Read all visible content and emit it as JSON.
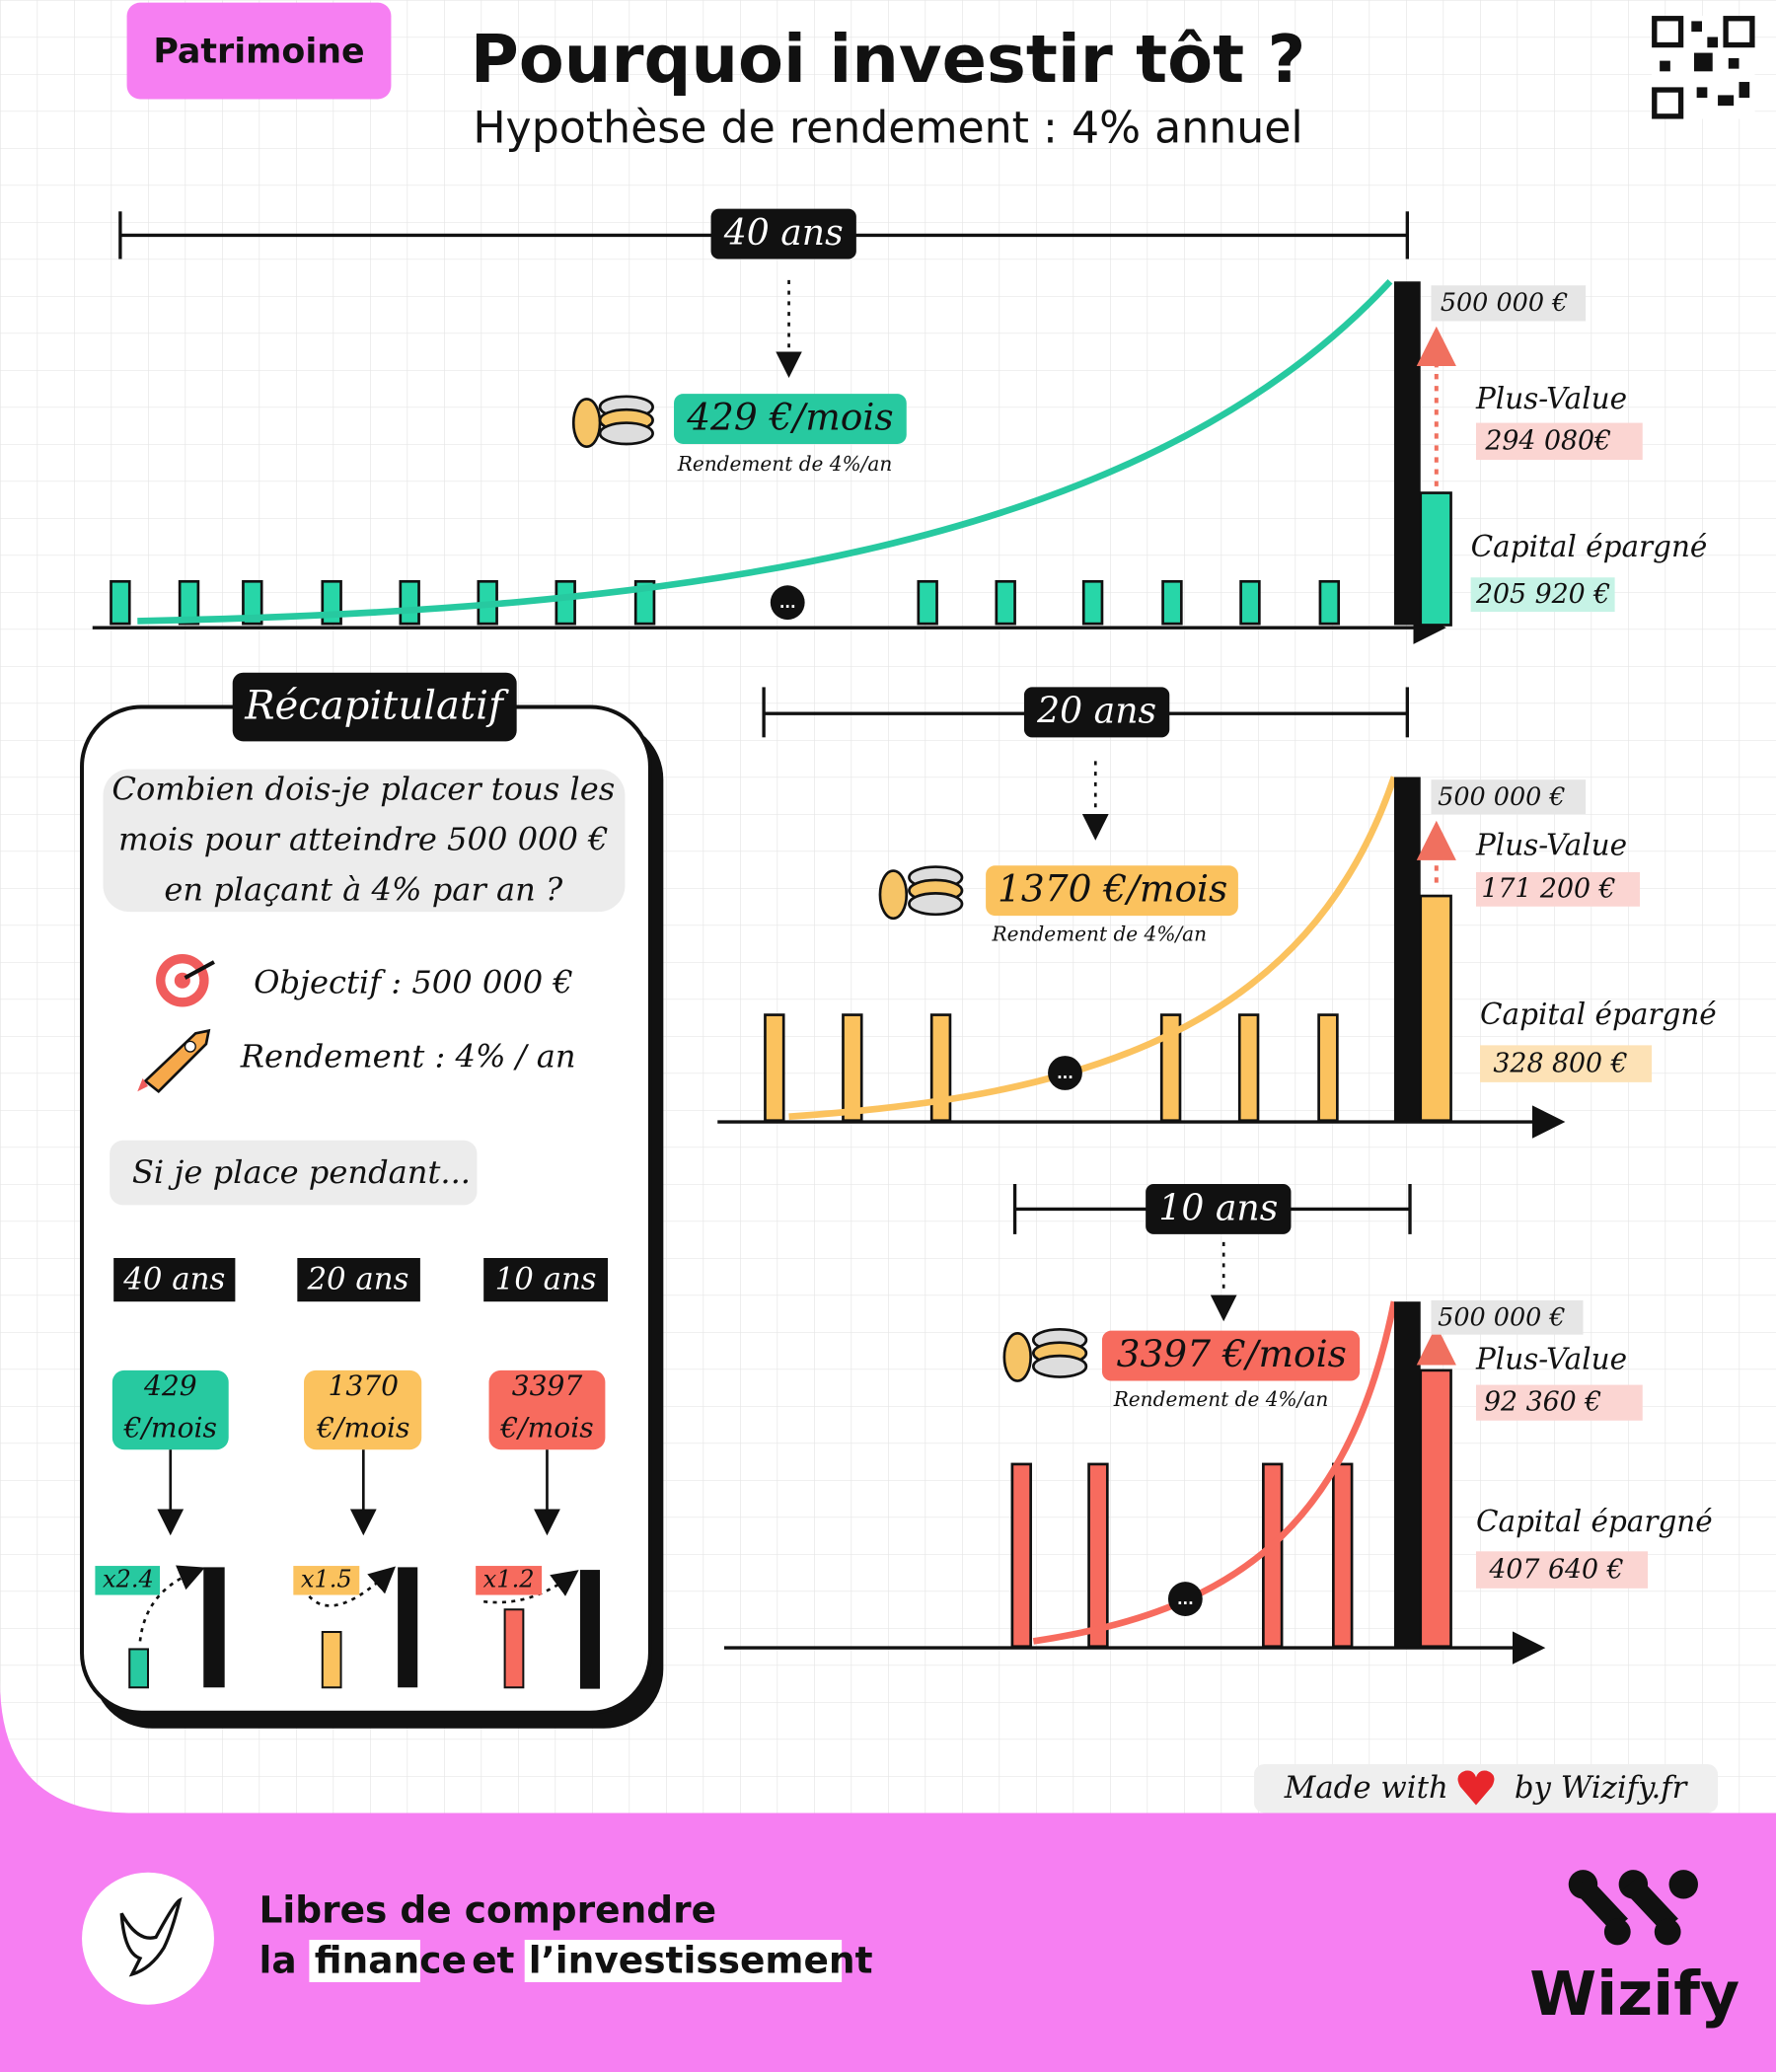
{
  "header": {
    "tag": "Patrimoine",
    "title": "Pourquoi investir tôt ?",
    "subtitle": "Hypothèse de rendement : 4% annuel"
  },
  "scenarios": [
    {
      "duration": "40 ans",
      "monthly": "429 €/mois",
      "rate": "Rendement de 4%/an",
      "target": "500 000 €",
      "gain_label": "Plus-Value",
      "gain": "294 080€",
      "capital_label": "Capital épargné",
      "capital": "205 920 €"
    },
    {
      "duration": "20 ans",
      "monthly": "1370 €/mois",
      "rate": "Rendement de 4%/an",
      "target": "500 000 €",
      "gain_label": "Plus-Value",
      "gain": "171 200 €",
      "capital_label": "Capital épargné",
      "capital": "328 800 €"
    },
    {
      "duration": "10 ans",
      "monthly": "3397 €/mois",
      "rate": "Rendement de 4%/an",
      "target": "500 000 €",
      "gain_label": "Plus-Value",
      "gain": "92 360 €",
      "capital_label": "Capital épargné",
      "capital": "407 640 €"
    }
  ],
  "ellipsis": "...",
  "recap": {
    "title": "Récapitulatif",
    "question": [
      "Combien dois-je placer tous les",
      "mois pour atteindre 500 000 €",
      "en plaçant à 4% par an ?"
    ],
    "objective": "Objectif : 500 000 €",
    "return": "Rendement : 4% / an",
    "intro": "Si je place pendant...",
    "columns": [
      {
        "duration": "40 ans",
        "monthly": [
          "429",
          "€/mois"
        ],
        "multiplier": "x2.4"
      },
      {
        "duration": "20 ans",
        "monthly": [
          "1370",
          "€/mois"
        ],
        "multiplier": "x1.5"
      },
      {
        "duration": "10 ans",
        "monthly": [
          "3397",
          "€/mois"
        ],
        "multiplier": "x1.2"
      }
    ]
  },
  "credit": {
    "made_with": "Made with",
    "by": "by Wizify.fr"
  },
  "footer": {
    "line1": "Libres de comprendre",
    "line2": [
      "la",
      "finance",
      "et",
      "l’investissement"
    ],
    "brand": "Wizify"
  }
}
